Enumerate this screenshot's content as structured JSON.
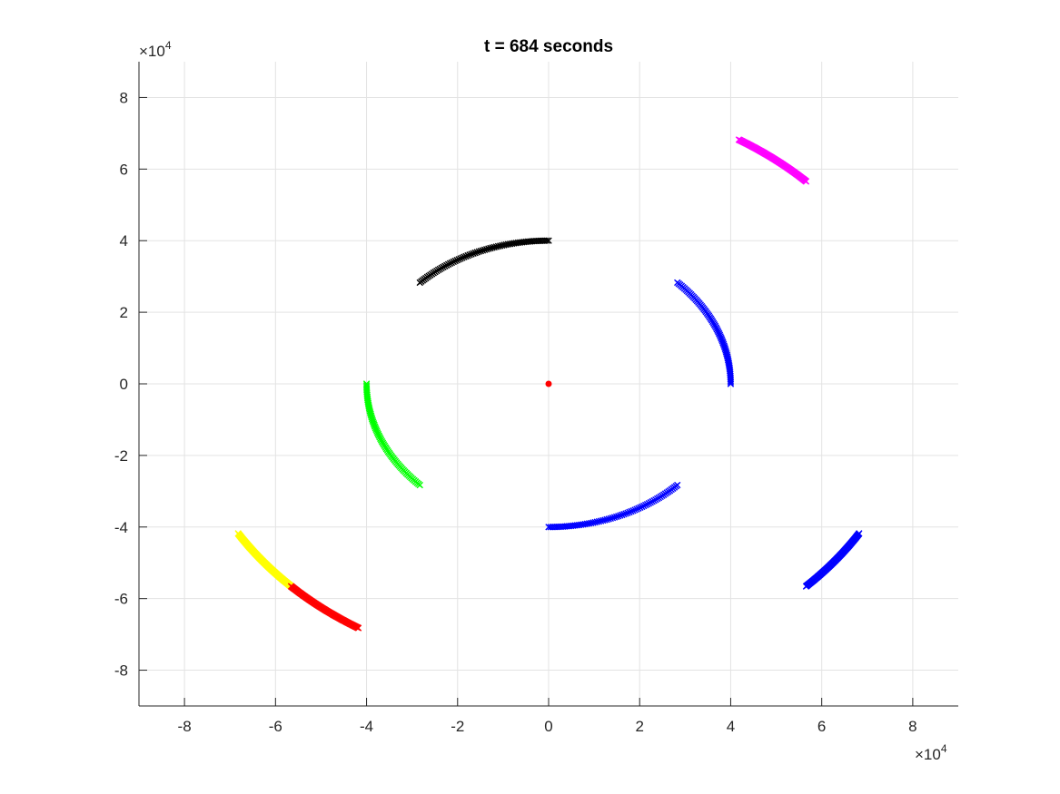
{
  "chart_data": {
    "type": "scatter",
    "title": "t = 684 seconds",
    "xlabel": "",
    "ylabel": "",
    "xlim": [
      -90000,
      90000
    ],
    "ylim": [
      -90000,
      90000
    ],
    "x_ticks": [
      -80000,
      -60000,
      -40000,
      -20000,
      0,
      20000,
      40000,
      60000,
      80000
    ],
    "y_ticks": [
      -80000,
      -60000,
      -40000,
      -20000,
      0,
      20000,
      40000,
      60000,
      80000
    ],
    "x_tick_labels": [
      "-8",
      "-6",
      "-4",
      "-2",
      "0",
      "2",
      "4",
      "6",
      "8"
    ],
    "y_tick_labels": [
      "-8",
      "-6",
      "-4",
      "-2",
      "0",
      "2",
      "4",
      "6",
      "8"
    ],
    "x_exponent_label": "×10",
    "y_exponent_label": "×10",
    "exponent_power": "4",
    "grid": true,
    "center_point": {
      "x": 0,
      "y": 0,
      "color": "#ff0000"
    },
    "series": [
      {
        "color": "#000000",
        "radius": 40000,
        "start_angle_deg": 135,
        "end_angle_deg": 90
      },
      {
        "color": "#0000ff",
        "radius": 40000,
        "start_angle_deg": 45,
        "end_angle_deg": 0
      },
      {
        "color": "#00ff00",
        "radius": 40000,
        "start_angle_deg": 180,
        "end_angle_deg": 225
      },
      {
        "color": "#0000ff",
        "radius": 40000,
        "start_angle_deg": 270,
        "end_angle_deg": 315
      },
      {
        "color": "#ffff00",
        "radius": 80000,
        "start_angle_deg": 211.5,
        "end_angle_deg": 225
      },
      {
        "color": "#ff00ff",
        "radius": 80000,
        "start_angle_deg": 58.5,
        "end_angle_deg": 45
      },
      {
        "color": "#ff0000",
        "radius": 80000,
        "start_angle_deg": 225,
        "end_angle_deg": 238.5
      },
      {
        "color": "#0000ff",
        "radius": 80000,
        "start_angle_deg": 315,
        "end_angle_deg": 328.5
      }
    ]
  }
}
